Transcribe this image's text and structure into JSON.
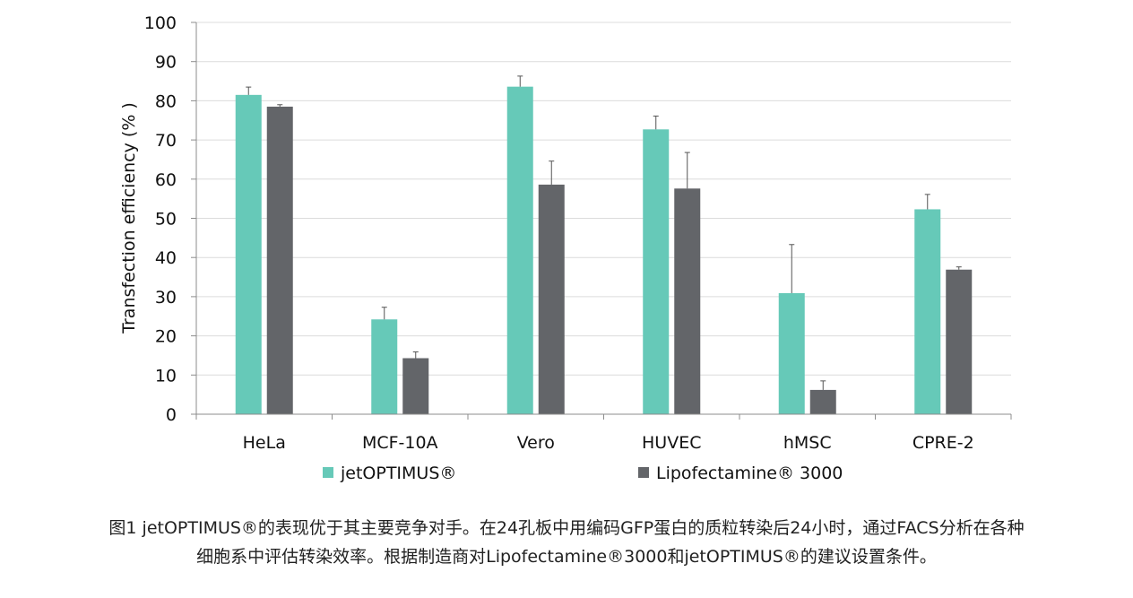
{
  "chart_data": {
    "type": "bar",
    "categories": [
      "HeLa",
      "MCF-10A",
      "Vero",
      "HUVEC",
      "hMSC",
      "CPRE-2"
    ],
    "series": [
      {
        "name": "jetOPTIMUS®",
        "color": "#66c9b8",
        "values": [
          81.5,
          24.2,
          83.6,
          72.7,
          30.9,
          52.3
        ],
        "errors": [
          2.0,
          3.1,
          2.7,
          3.4,
          12.4,
          3.8
        ]
      },
      {
        "name": "Lipofectamine® 3000",
        "color": "#636569",
        "values": [
          78.5,
          14.3,
          58.6,
          57.6,
          6.2,
          36.9
        ],
        "errors": [
          0.5,
          1.6,
          6.0,
          9.2,
          2.3,
          0.7
        ]
      }
    ],
    "ylabel": "Transfection efficiency (% )",
    "xlabel": "",
    "title": "",
    "ylim": [
      0,
      100
    ],
    "yticks": [
      0,
      10,
      20,
      30,
      40,
      50,
      60,
      70,
      80,
      90,
      100
    ],
    "grid": true,
    "legend": "bottom"
  },
  "caption": {
    "line1": "图1 jetOPTIMUS®的表现优于其主要竞争对手。在24孔板中用编码GFP蛋白的质粒转染后24小时，通过FACS分析在各种",
    "line2": "细胞系中评估转染效率。根据制造商对Lipofectamine®3000和jetOPTIMUS®的建议设置条件。"
  }
}
